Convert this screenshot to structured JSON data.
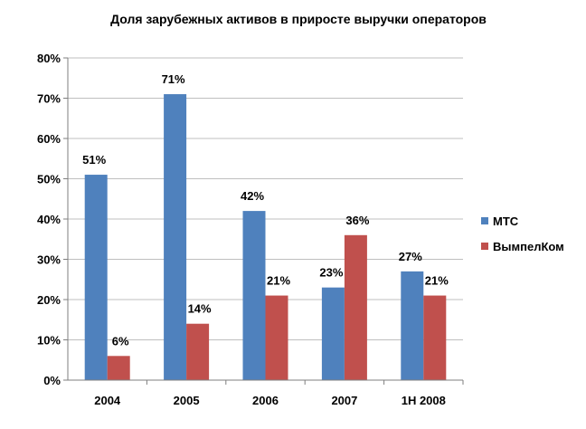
{
  "chart_data": {
    "type": "bar",
    "title": "Доля зарубежных активов в приросте выручки операторов",
    "categories": [
      "2004",
      "2005",
      "2006",
      "2007",
      "1H 2008"
    ],
    "series": [
      {
        "name": "МТС",
        "values": [
          51,
          71,
          42,
          23,
          27
        ],
        "color": "#4f81bd"
      },
      {
        "name": "ВымпелКом",
        "values": [
          6,
          14,
          21,
          36,
          21
        ],
        "color": "#c0504d"
      }
    ],
    "y_ticks": [
      "0%",
      "10%",
      "20%",
      "30%",
      "40%",
      "50%",
      "60%",
      "70%",
      "80%"
    ],
    "data_labels": [
      [
        "51%",
        "71%",
        "42%",
        "23%",
        "27%"
      ],
      [
        "6%",
        "14%",
        "21%",
        "36%",
        "21%"
      ]
    ],
    "ylim": [
      0,
      80
    ],
    "y_unit": "%",
    "grid": true,
    "legend_position": "right"
  }
}
